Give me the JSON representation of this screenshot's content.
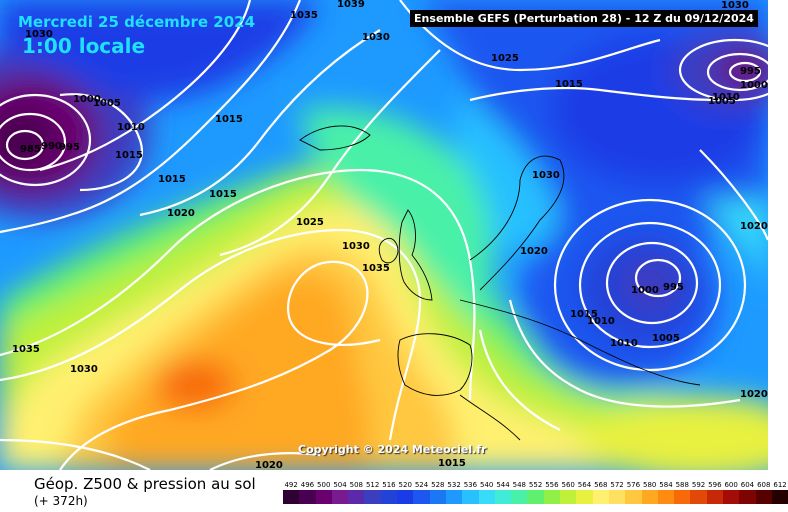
{
  "header": {
    "date": "Mercredi 25 décembre 2024",
    "local_time": "1:00 locale",
    "ensemble": "Ensemble GEFS (Perturbation 28) - 12 Z du 09/12/2024"
  },
  "copyright": "Copyright © 2024 Meteociel.fr",
  "footer": {
    "title": "Géop. Z500 & pression au sol",
    "subtitle": "(+ 372h)"
  },
  "legend": {
    "labels": [
      "492",
      "496",
      "500",
      "504",
      "508",
      "512",
      "516",
      "520",
      "524",
      "528",
      "532",
      "536",
      "540",
      "544",
      "548",
      "552",
      "556",
      "560",
      "564",
      "568",
      "572",
      "576",
      "580",
      "584",
      "588",
      "592",
      "596",
      "600",
      "604",
      "608",
      "612"
    ],
    "colors": [
      "#2e0034",
      "#4a0050",
      "#6a0070",
      "#7a1a90",
      "#5b2aa8",
      "#3c3ec0",
      "#2342d8",
      "#1a3ce6",
      "#1e56f0",
      "#1a78f5",
      "#1e9aff",
      "#28c0ff",
      "#38dcf8",
      "#40ecd8",
      "#48f0a8",
      "#60f070",
      "#90f048",
      "#bff03a",
      "#e8f040",
      "#fff070",
      "#ffe060",
      "#ffc840",
      "#ffa820",
      "#ff8c10",
      "#f86a08",
      "#e24808",
      "#c62808",
      "#a40c08",
      "#7e0404",
      "#560000",
      "#240000"
    ]
  },
  "pressure_labels": [
    "1035",
    "1039",
    "1030",
    "1025",
    "1015",
    "1030",
    "1005",
    "1000",
    "1015",
    "1010",
    "1015",
    "985",
    "990",
    "995",
    "1015",
    "1015",
    "1020",
    "1025",
    "1030",
    "1035",
    "1030",
    "1020",
    "1015",
    "1010",
    "1000",
    "995",
    "1005",
    "1010",
    "1020",
    "1020",
    "1035",
    "1030",
    "1020",
    "1015",
    "995",
    "1000",
    "1010",
    "1005",
    "1030"
  ]
}
